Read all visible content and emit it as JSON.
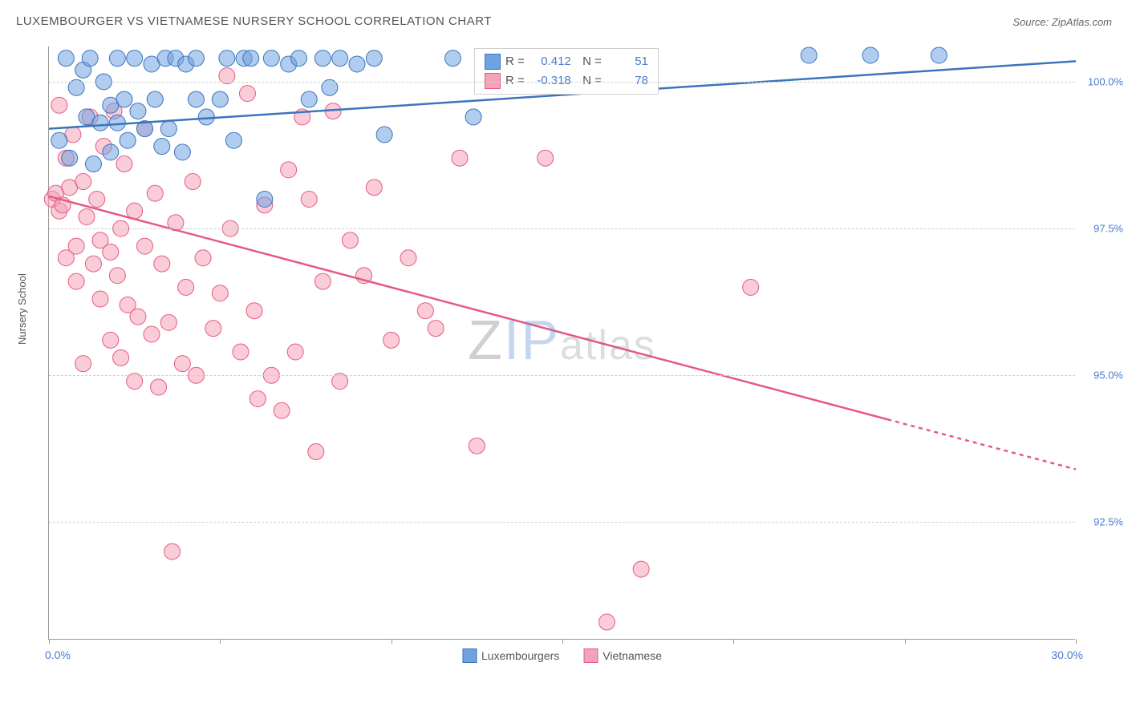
{
  "title": "LUXEMBOURGER VS VIETNAMESE NURSERY SCHOOL CORRELATION CHART",
  "source": "Source: ZipAtlas.com",
  "ylabel": "Nursery School",
  "watermark": {
    "z": "Z",
    "ip": "IP",
    "atlas": "atlas"
  },
  "chart": {
    "type": "scatter",
    "background_color": "#ffffff",
    "grid_color": "#d8d8d8",
    "xlim": [
      0,
      30
    ],
    "ylim": [
      90.5,
      100.6
    ],
    "xticks": [
      0,
      5,
      10,
      15,
      20,
      25,
      30
    ],
    "xtick_labels_shown": {
      "left": "0.0%",
      "right": "30.0%"
    },
    "yticks": [
      92.5,
      95.0,
      97.5,
      100.0
    ],
    "ytick_labels": [
      "92.5%",
      "95.0%",
      "97.5%",
      "100.0%"
    ],
    "marker_radius": 10,
    "marker_opacity": 0.55,
    "line_width": 2.5,
    "series": [
      {
        "name": "Luxembourgers",
        "color": "#6fa3e0",
        "stroke": "#3b74bd",
        "R": "0.412",
        "N": "51",
        "trend": {
          "x1": 0,
          "y1": 99.2,
          "x2": 30,
          "y2": 100.35
        },
        "points": [
          [
            0.3,
            99.0
          ],
          [
            0.5,
            100.4
          ],
          [
            0.6,
            98.7
          ],
          [
            0.8,
            99.9
          ],
          [
            1.0,
            100.2
          ],
          [
            1.1,
            99.4
          ],
          [
            1.2,
            100.4
          ],
          [
            1.3,
            98.6
          ],
          [
            1.5,
            99.3
          ],
          [
            1.6,
            100.0
          ],
          [
            1.8,
            99.6
          ],
          [
            1.8,
            98.8
          ],
          [
            2.0,
            99.3
          ],
          [
            2.0,
            100.4
          ],
          [
            2.2,
            99.7
          ],
          [
            2.3,
            99.0
          ],
          [
            2.5,
            100.4
          ],
          [
            2.6,
            99.5
          ],
          [
            2.8,
            99.2
          ],
          [
            3.0,
            100.3
          ],
          [
            3.1,
            99.7
          ],
          [
            3.3,
            98.9
          ],
          [
            3.4,
            100.4
          ],
          [
            3.5,
            99.2
          ],
          [
            3.7,
            100.4
          ],
          [
            3.9,
            98.8
          ],
          [
            4.0,
            100.3
          ],
          [
            4.3,
            99.7
          ],
          [
            4.3,
            100.4
          ],
          [
            4.6,
            99.4
          ],
          [
            5.0,
            99.7
          ],
          [
            5.2,
            100.4
          ],
          [
            5.4,
            99.0
          ],
          [
            5.7,
            100.4
          ],
          [
            5.9,
            100.4
          ],
          [
            6.3,
            98.0
          ],
          [
            6.5,
            100.4
          ],
          [
            7.0,
            100.3
          ],
          [
            7.3,
            100.4
          ],
          [
            7.6,
            99.7
          ],
          [
            8.0,
            100.4
          ],
          [
            8.2,
            99.9
          ],
          [
            8.5,
            100.4
          ],
          [
            9.0,
            100.3
          ],
          [
            9.5,
            100.4
          ],
          [
            9.8,
            99.1
          ],
          [
            11.8,
            100.4
          ],
          [
            12.4,
            99.4
          ],
          [
            22.2,
            100.45
          ],
          [
            24.0,
            100.45
          ],
          [
            26.0,
            100.45
          ]
        ]
      },
      {
        "name": "Vietnamese",
        "color": "#f4a3b6",
        "stroke": "#e55a85",
        "R": "-0.318",
        "N": "78",
        "trend": {
          "x1": 0,
          "y1": 98.05,
          "x2": 24.5,
          "y2": 94.25,
          "x2_dash": 30,
          "y2_dash": 93.4
        },
        "points": [
          [
            0.1,
            98.0
          ],
          [
            0.2,
            98.1
          ],
          [
            0.3,
            97.8
          ],
          [
            0.3,
            99.6
          ],
          [
            0.4,
            97.9
          ],
          [
            0.5,
            98.7
          ],
          [
            0.5,
            97.0
          ],
          [
            0.6,
            98.2
          ],
          [
            0.7,
            99.1
          ],
          [
            0.8,
            97.2
          ],
          [
            0.8,
            96.6
          ],
          [
            1.0,
            98.3
          ],
          [
            1.0,
            95.2
          ],
          [
            1.1,
            97.7
          ],
          [
            1.2,
            99.4
          ],
          [
            1.3,
            96.9
          ],
          [
            1.4,
            98.0
          ],
          [
            1.5,
            97.3
          ],
          [
            1.5,
            96.3
          ],
          [
            1.6,
            98.9
          ],
          [
            1.8,
            97.1
          ],
          [
            1.8,
            95.6
          ],
          [
            1.9,
            99.5
          ],
          [
            2.0,
            96.7
          ],
          [
            2.1,
            97.5
          ],
          [
            2.1,
            95.3
          ],
          [
            2.2,
            98.6
          ],
          [
            2.3,
            96.2
          ],
          [
            2.5,
            97.8
          ],
          [
            2.5,
            94.9
          ],
          [
            2.6,
            96.0
          ],
          [
            2.8,
            97.2
          ],
          [
            2.8,
            99.2
          ],
          [
            3.0,
            95.7
          ],
          [
            3.1,
            98.1
          ],
          [
            3.2,
            94.8
          ],
          [
            3.3,
            96.9
          ],
          [
            3.5,
            95.9
          ],
          [
            3.6,
            92.0
          ],
          [
            3.7,
            97.6
          ],
          [
            3.9,
            95.2
          ],
          [
            4.0,
            96.5
          ],
          [
            4.2,
            98.3
          ],
          [
            4.3,
            95.0
          ],
          [
            4.5,
            97.0
          ],
          [
            4.8,
            95.8
          ],
          [
            5.0,
            96.4
          ],
          [
            5.2,
            100.1
          ],
          [
            5.3,
            97.5
          ],
          [
            5.6,
            95.4
          ],
          [
            5.8,
            99.8
          ],
          [
            6.0,
            96.1
          ],
          [
            6.1,
            94.6
          ],
          [
            6.3,
            97.9
          ],
          [
            6.5,
            95.0
          ],
          [
            6.8,
            94.4
          ],
          [
            7.0,
            98.5
          ],
          [
            7.2,
            95.4
          ],
          [
            7.4,
            99.4
          ],
          [
            7.6,
            98.0
          ],
          [
            7.8,
            93.7
          ],
          [
            8.0,
            96.6
          ],
          [
            8.3,
            99.5
          ],
          [
            8.5,
            94.9
          ],
          [
            8.8,
            97.3
          ],
          [
            9.2,
            96.7
          ],
          [
            9.5,
            98.2
          ],
          [
            10.0,
            95.6
          ],
          [
            10.5,
            97.0
          ],
          [
            11.0,
            96.1
          ],
          [
            11.3,
            95.8
          ],
          [
            12.0,
            98.7
          ],
          [
            12.5,
            93.8
          ],
          [
            14.5,
            98.7
          ],
          [
            16.3,
            90.8
          ],
          [
            17.3,
            91.7
          ],
          [
            20.5,
            96.5
          ],
          [
            16.0,
            100.2
          ]
        ]
      }
    ]
  },
  "colors": {
    "axis_text": "#4a7bd0",
    "label_text": "#555555"
  }
}
